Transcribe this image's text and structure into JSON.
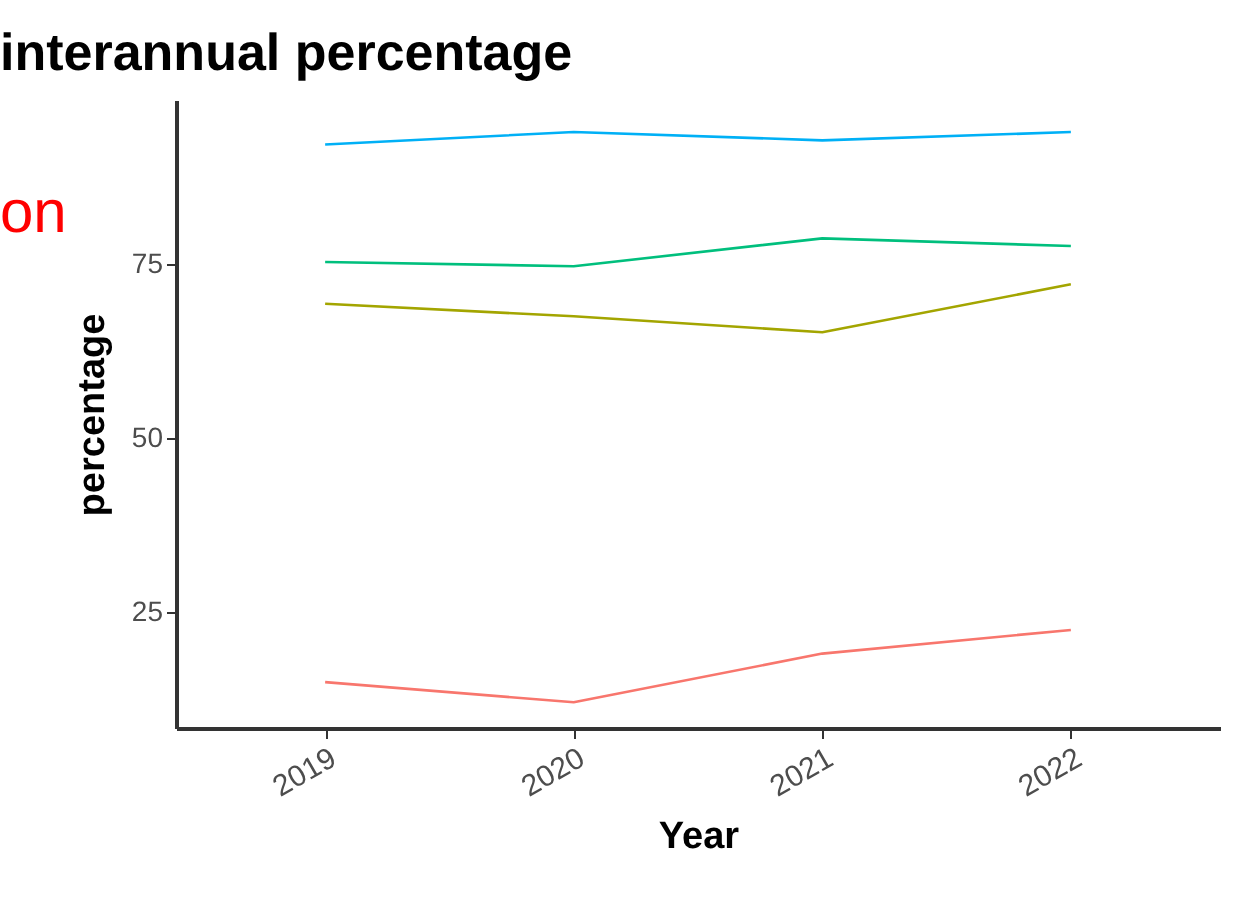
{
  "chart_data": {
    "type": "line",
    "title": "interannual percentage",
    "xlabel": "Year",
    "ylabel": "percentage",
    "categories": [
      "2019",
      "2020",
      "2021",
      "2022"
    ],
    "series": [
      {
        "color": "#00b0f6",
        "values": [
          92.2,
          94.0,
          92.8,
          94.0
        ]
      },
      {
        "color": "#00bf7d",
        "values": [
          75.3,
          74.7,
          78.7,
          77.6
        ]
      },
      {
        "color": "#a3a500",
        "values": [
          69.3,
          67.5,
          65.2,
          72.1
        ]
      },
      {
        "color": "#f8766d",
        "values": [
          14.9,
          12.0,
          19.0,
          22.4
        ]
      }
    ],
    "ylim": [
      8.3,
      98.6
    ],
    "yticks": [
      25,
      50,
      75
    ],
    "grid": false,
    "annotations": [
      "on"
    ]
  }
}
